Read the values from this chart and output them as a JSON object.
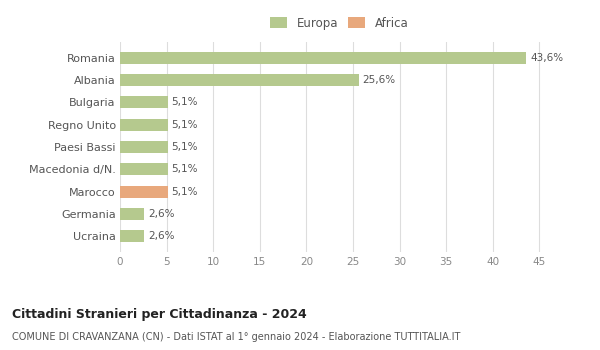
{
  "categories": [
    "Romania",
    "Albania",
    "Bulgaria",
    "Regno Unito",
    "Paesi Bassi",
    "Macedonia d/N.",
    "Marocco",
    "Germania",
    "Ucraina"
  ],
  "values": [
    43.6,
    25.6,
    5.1,
    5.1,
    5.1,
    5.1,
    5.1,
    2.6,
    2.6
  ],
  "labels": [
    "43,6%",
    "25,6%",
    "5,1%",
    "5,1%",
    "5,1%",
    "5,1%",
    "5,1%",
    "2,6%",
    "2,6%"
  ],
  "colors": [
    "#b5c98e",
    "#b5c98e",
    "#b5c98e",
    "#b5c98e",
    "#b5c98e",
    "#b5c98e",
    "#e8a87c",
    "#b5c98e",
    "#b5c98e"
  ],
  "legend": [
    {
      "label": "Europa",
      "color": "#b5c98e"
    },
    {
      "label": "Africa",
      "color": "#e8a87c"
    }
  ],
  "title": "Cittadini Stranieri per Cittadinanza - 2024",
  "subtitle": "COMUNE DI CRAVANZANA (CN) - Dati ISTAT al 1° gennaio 2024 - Elaborazione TUTTITALIA.IT",
  "xlim": [
    0,
    47
  ],
  "xticks": [
    0,
    5,
    10,
    15,
    20,
    25,
    30,
    35,
    40,
    45
  ],
  "background_color": "#ffffff",
  "grid_color": "#dddddd",
  "bar_height": 0.55
}
